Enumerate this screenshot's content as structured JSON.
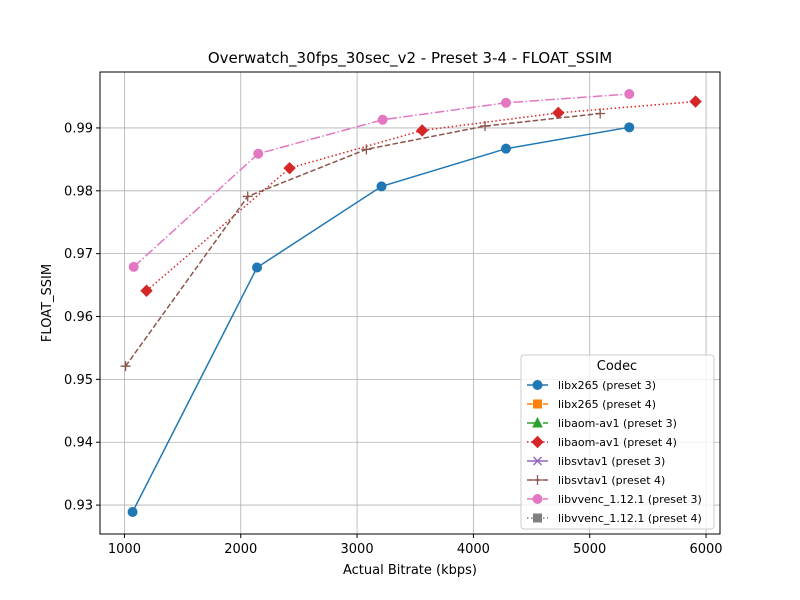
{
  "chart_data": {
    "type": "line",
    "title": "Overwatch_30fps_30sec_v2 - Preset 3-4 - FLOAT_SSIM",
    "xlabel": "Actual Bitrate (kbps)",
    "ylabel": "FLOAT_SSIM",
    "xlim": [
      790,
      6120
    ],
    "ylim": [
      0.9254,
      0.9989
    ],
    "xticks": [
      1000,
      2000,
      3000,
      4000,
      5000,
      6000
    ],
    "yticks": [
      0.93,
      0.94,
      0.95,
      0.96,
      0.97,
      0.98,
      0.99
    ],
    "xtick_labels": [
      "1000",
      "2000",
      "3000",
      "4000",
      "5000",
      "6000"
    ],
    "ytick_labels": [
      "0.93",
      "0.94",
      "0.95",
      "0.96",
      "0.97",
      "0.98",
      "0.99"
    ],
    "grid": true,
    "legend": {
      "title": "Codec",
      "position": "lower-right"
    },
    "series": [
      {
        "name": "libx265 (preset 3)",
        "color": "#1f77b4",
        "marker": "circle",
        "linestyle": "solid",
        "points": [
          [
            1070,
            0.9289
          ],
          [
            2140,
            0.9678
          ],
          [
            3210,
            0.9807
          ],
          [
            4280,
            0.9867
          ],
          [
            5340,
            0.9901
          ]
        ]
      },
      {
        "name": "libx265 (preset 4)",
        "color": "#ff7f0e",
        "marker": "square",
        "linestyle": "dashed",
        "points": []
      },
      {
        "name": "libaom-av1 (preset 3)",
        "color": "#2ca02c",
        "marker": "triangle",
        "linestyle": "dashdot",
        "points": []
      },
      {
        "name": "libaom-av1 (preset 4)",
        "color": "#d62728",
        "marker": "diamond",
        "linestyle": "dotted",
        "points": [
          [
            1190,
            0.9641
          ],
          [
            2420,
            0.9836
          ],
          [
            3560,
            0.9896
          ],
          [
            4730,
            0.9924
          ],
          [
            5910,
            0.9942
          ]
        ]
      },
      {
        "name": "libsvtav1 (preset 3)",
        "color": "#9467bd",
        "marker": "x",
        "linestyle": "solid",
        "points": []
      },
      {
        "name": "libsvtav1 (preset 4)",
        "color": "#8c564b",
        "marker": "plus",
        "linestyle": "dashed",
        "points": [
          [
            1010,
            0.9521
          ],
          [
            2060,
            0.9791
          ],
          [
            3080,
            0.9866
          ],
          [
            4100,
            0.9903
          ],
          [
            5090,
            0.9923
          ]
        ]
      },
      {
        "name": "libvvenc_1.12.1 (preset 3)",
        "color": "#e377c2",
        "marker": "circle",
        "linestyle": "dashdot",
        "points": [
          [
            1080,
            0.9679
          ],
          [
            2150,
            0.9859
          ],
          [
            3220,
            0.9913
          ],
          [
            4280,
            0.994
          ],
          [
            5340,
            0.9954
          ]
        ]
      },
      {
        "name": "libvvenc_1.12.1 (preset 4)",
        "color": "#7f7f7f",
        "marker": "square",
        "linestyle": "dotted",
        "points": []
      }
    ]
  }
}
